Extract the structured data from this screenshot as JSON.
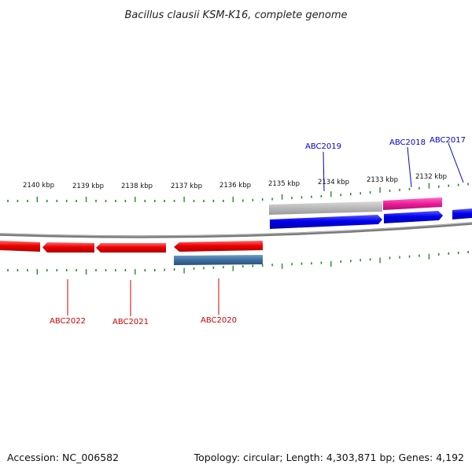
{
  "title": "Bacillus clausii KSM-K16, complete genome",
  "footer": {
    "accession": "Accession: NC_006582",
    "summary": "Topology: circular; Length: 4,303,871 bp; Genes: 4,192"
  },
  "colors": {
    "backbone": "#808080",
    "tick": "#2a8a2a",
    "forward_label": "#0000cc",
    "reverse_label": "#cc0000",
    "cds_forward": "#0000ee",
    "cds_reverse": "#ee0000",
    "gene_gray": "#b8b8b8",
    "gene_pink": "#ee1c9a",
    "gene_steel": "#3f6fa0"
  },
  "ticks": {
    "labels": [
      "2140 kbp",
      "2139 kbp",
      "2138 kbp",
      "2137 kbp",
      "2136 kbp",
      "2135 kbp",
      "2134 kbp",
      "2133 kbp",
      "2132 kbp"
    ]
  },
  "genes": {
    "labels": [
      {
        "text": "ABC2019",
        "strand": "forward"
      },
      {
        "text": "ABC2018",
        "strand": "forward"
      },
      {
        "text": "ABC2017",
        "strand": "forward"
      },
      {
        "text": "ABC2022",
        "strand": "reverse"
      },
      {
        "text": "ABC2021",
        "strand": "reverse"
      },
      {
        "text": "ABC2020",
        "strand": "reverse"
      }
    ]
  }
}
